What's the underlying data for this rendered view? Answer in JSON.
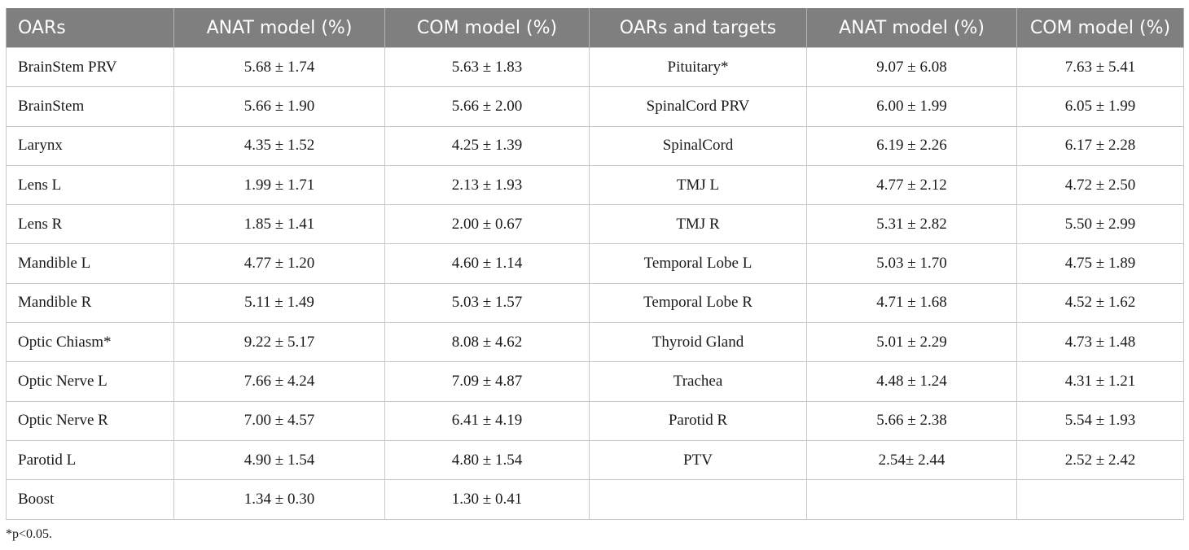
{
  "table": {
    "headers": [
      "OARs",
      "ANAT model (%)",
      "COM model (%)",
      "OARs and targets",
      "ANAT model (%)",
      "COM model (%)"
    ],
    "rows": [
      [
        "BrainStem PRV",
        "5.68 ± 1.74",
        "5.63 ± 1.83",
        "Pituitary*",
        "9.07 ± 6.08",
        "7.63 ± 5.41"
      ],
      [
        "BrainStem",
        "5.66 ± 1.90",
        "5.66 ± 2.00",
        "SpinalCord PRV",
        "6.00 ± 1.99",
        "6.05 ± 1.99"
      ],
      [
        "Larynx",
        "4.35 ± 1.52",
        "4.25 ± 1.39",
        "SpinalCord",
        "6.19 ± 2.26",
        "6.17 ± 2.28"
      ],
      [
        "Lens L",
        "1.99 ± 1.71",
        "2.13 ± 1.93",
        "TMJ L",
        "4.77 ± 2.12",
        "4.72 ± 2.50"
      ],
      [
        "Lens R",
        "1.85 ± 1.41",
        "2.00 ± 0.67",
        "TMJ R",
        "5.31 ± 2.82",
        "5.50 ± 2.99"
      ],
      [
        "Mandible L",
        "4.77 ± 1.20",
        "4.60 ± 1.14",
        "Temporal Lobe L",
        "5.03 ± 1.70",
        "4.75 ± 1.89"
      ],
      [
        "Mandible R",
        "5.11 ± 1.49",
        "5.03 ± 1.57",
        "Temporal Lobe R",
        "4.71 ± 1.68",
        "4.52 ± 1.62"
      ],
      [
        "Optic Chiasm*",
        "9.22 ± 5.17",
        "8.08 ± 4.62",
        "Thyroid Gland",
        "5.01 ± 2.29",
        "4.73 ± 1.48"
      ],
      [
        "Optic Nerve L",
        "7.66 ± 4.24",
        "7.09 ± 4.87",
        "Trachea",
        "4.48 ± 1.24",
        "4.31 ± 1.21"
      ],
      [
        "Optic Nerve R",
        "7.00 ± 4.57",
        "6.41 ± 4.19",
        "Parotid R",
        "5.66 ± 2.38",
        "5.54 ± 1.93"
      ],
      [
        "Parotid L",
        "4.90 ± 1.54",
        "4.80 ± 1.54",
        "PTV",
        "2.54± 2.44",
        "2.52 ± 2.42"
      ],
      [
        "Boost",
        "1.34 ± 0.30",
        "1.30 ± 0.41",
        "",
        "",
        ""
      ]
    ]
  },
  "footnote": "*p<0.05."
}
